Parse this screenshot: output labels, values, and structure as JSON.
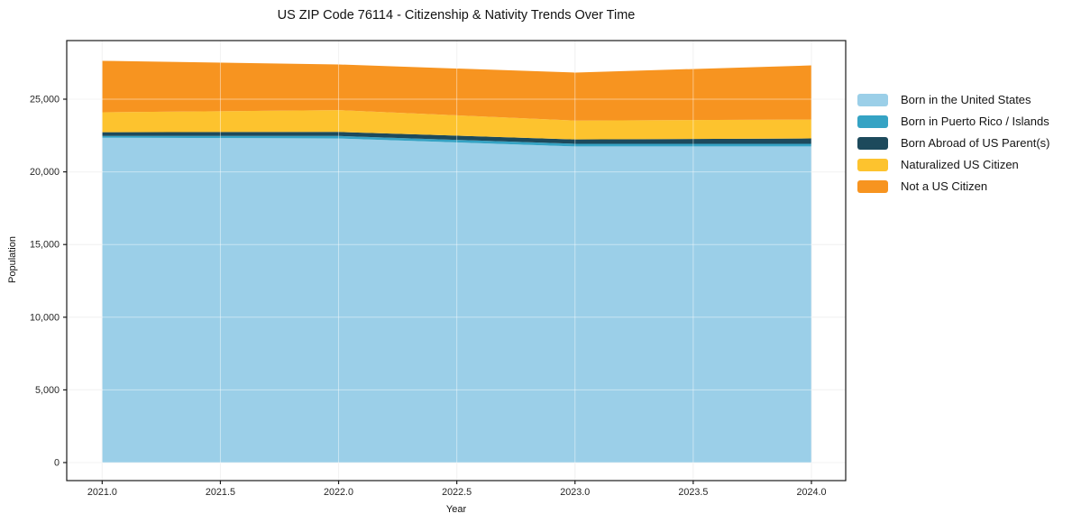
{
  "title": "US ZIP Code 76114 - Citizenship & Nativity Trends Over Time",
  "chart_data": {
    "type": "area",
    "stacked": true,
    "title": "US ZIP Code 76114 - Citizenship & Nativity Trends Over Time",
    "xlabel": "Year",
    "ylabel": "Population",
    "x": [
      2021,
      2022,
      2023,
      2024
    ],
    "series": [
      {
        "name": "Born in the United States",
        "color": "#9BCFE8",
        "values": [
          22350,
          22300,
          21750,
          21750
        ]
      },
      {
        "name": "Born in Puerto Rico / Islands",
        "color": "#35A3C4",
        "values": [
          120,
          170,
          180,
          180
        ]
      },
      {
        "name": "Born Abroad of US Parent(s)",
        "color": "#1D4A5C",
        "values": [
          260,
          280,
          300,
          370
        ]
      },
      {
        "name": "Naturalized US Citizen",
        "color": "#FDC32E",
        "values": [
          1370,
          1500,
          1300,
          1300
        ]
      },
      {
        "name": "Not a US Citizen",
        "color": "#F79420",
        "values": [
          3540,
          3140,
          3300,
          3725
        ]
      }
    ],
    "totals_by_year": [
      27640,
      27390,
      26830,
      27325
    ],
    "xlim": [
      2020.85,
      2024.145
    ],
    "ylim": [
      -1241,
      29032
    ],
    "xticks": {
      "values": [
        2021.0,
        2021.5,
        2022.0,
        2022.5,
        2023.0,
        2023.5,
        2024.0
      ],
      "labels": [
        "2021.0",
        "2021.5",
        "2022.0",
        "2022.5",
        "2023.0",
        "2023.5",
        "2024.0"
      ]
    },
    "yticks": {
      "values": [
        0,
        5000,
        10000,
        15000,
        20000,
        25000
      ],
      "labels": [
        "0",
        "5,000",
        "10,000",
        "15,000",
        "20,000",
        "25,000"
      ]
    },
    "grid": true,
    "legend_position": "center right",
    "frame_color": "#1a1a1a",
    "grid_color": "#e9e9e9"
  }
}
